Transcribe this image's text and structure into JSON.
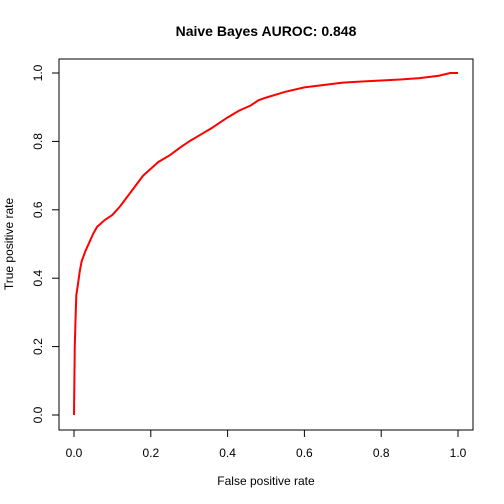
{
  "chart_data": {
    "type": "line",
    "title": "Naive Bayes AUROC: 0.848",
    "xlabel": "False positive rate",
    "ylabel": "True positive rate",
    "xlim": [
      0,
      1
    ],
    "ylim": [
      0,
      1
    ],
    "x_ticks": [
      "0.0",
      "0.2",
      "0.4",
      "0.6",
      "0.8",
      "1.0"
    ],
    "y_ticks": [
      "0.0",
      "0.2",
      "0.4",
      "0.6",
      "0.8",
      "1.0"
    ],
    "grid": false,
    "legend": "none",
    "series": [
      {
        "color": "#ff0000",
        "x": [
          0.0,
          0.002,
          0.004,
          0.006,
          0.01,
          0.015,
          0.02,
          0.03,
          0.04,
          0.05,
          0.06,
          0.07,
          0.08,
          0.1,
          0.12,
          0.14,
          0.16,
          0.18,
          0.2,
          0.22,
          0.25,
          0.28,
          0.3,
          0.33,
          0.36,
          0.4,
          0.43,
          0.46,
          0.48,
          0.5,
          0.55,
          0.6,
          0.65,
          0.7,
          0.75,
          0.8,
          0.85,
          0.9,
          0.95,
          0.98,
          1.0
        ],
        "y": [
          0.0,
          0.2,
          0.28,
          0.35,
          0.38,
          0.42,
          0.45,
          0.48,
          0.505,
          0.53,
          0.55,
          0.56,
          0.57,
          0.585,
          0.61,
          0.64,
          0.67,
          0.7,
          0.72,
          0.74,
          0.76,
          0.785,
          0.8,
          0.82,
          0.84,
          0.87,
          0.89,
          0.905,
          0.92,
          0.928,
          0.945,
          0.958,
          0.965,
          0.972,
          0.975,
          0.978,
          0.981,
          0.985,
          0.992,
          1.0,
          1.0
        ]
      }
    ]
  }
}
